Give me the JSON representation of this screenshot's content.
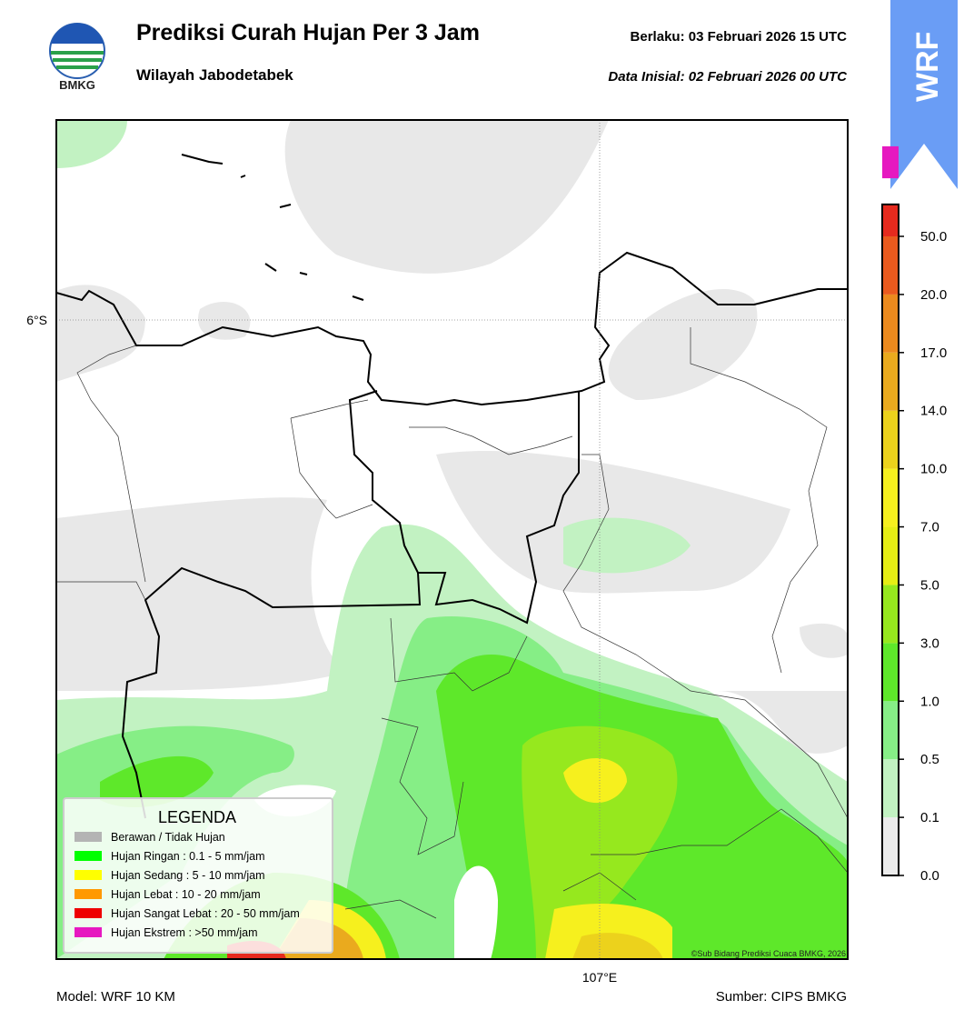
{
  "header": {
    "logo_text": "BMKG",
    "title": "Prediksi Curah Hujan Per 3 Jam",
    "subtitle": "Wilayah Jabodetabek",
    "valid": "Berlaku:  03 Februari 2026 15 UTC",
    "init": "Data Inisial:  02 Februari 2026 00 UTC",
    "badge": "WRF"
  },
  "map": {
    "lat_label": "6°S",
    "lon_label": "107°E",
    "credit": "©Sub Bidang Prediksi Cuaca BMKG, 2026"
  },
  "colorbar": {
    "ticks": [
      {
        "value": 0,
        "label": "0.0"
      },
      {
        "value": 0.1,
        "label": "0.1"
      },
      {
        "value": 0.5,
        "label": "0.5"
      },
      {
        "value": 1,
        "label": "1.0"
      },
      {
        "value": 3,
        "label": "3.0"
      },
      {
        "value": 5,
        "label": "5.0"
      },
      {
        "value": 7,
        "label": "7.0"
      },
      {
        "value": 10,
        "label": "10.0"
      },
      {
        "value": 14,
        "label": "14.0"
      },
      {
        "value": 17,
        "label": "17.0"
      },
      {
        "value": 20,
        "label": "20.0"
      },
      {
        "value": 50,
        "label": "50.0"
      }
    ],
    "colors": [
      "#ececec",
      "#c2f2c2",
      "#86ee86",
      "#5ee82a",
      "#96e81e",
      "#e6ee14",
      "#f6f01e",
      "#ecd21c",
      "#eaaa1e",
      "#ec8a1e",
      "#ea5a1e",
      "#e62a1e",
      "#e619c0"
    ]
  },
  "legend": {
    "title": "LEGENDA",
    "items": [
      {
        "label": "Berawan / Tidak Hujan",
        "color": "#b4b4b4"
      },
      {
        "label": "Hujan Ringan : 0.1 - 5 mm/jam",
        "color": "#00ff00"
      },
      {
        "label": "Hujan Sedang : 5 - 10 mm/jam",
        "color": "#ffff00"
      },
      {
        "label": "Hujan Lebat : 10 - 20 mm/jam",
        "color": "#ff9900"
      },
      {
        "label": "Hujan Sangat Lebat : 20 - 50 mm/jam",
        "color": "#ee0000"
      },
      {
        "label": "Hujan Ekstrem : >50 mm/jam",
        "color": "#e619c0"
      }
    ]
  },
  "footer": {
    "model": "Model: WRF 10 KM",
    "source": "Sumber: CIPS BMKG"
  }
}
